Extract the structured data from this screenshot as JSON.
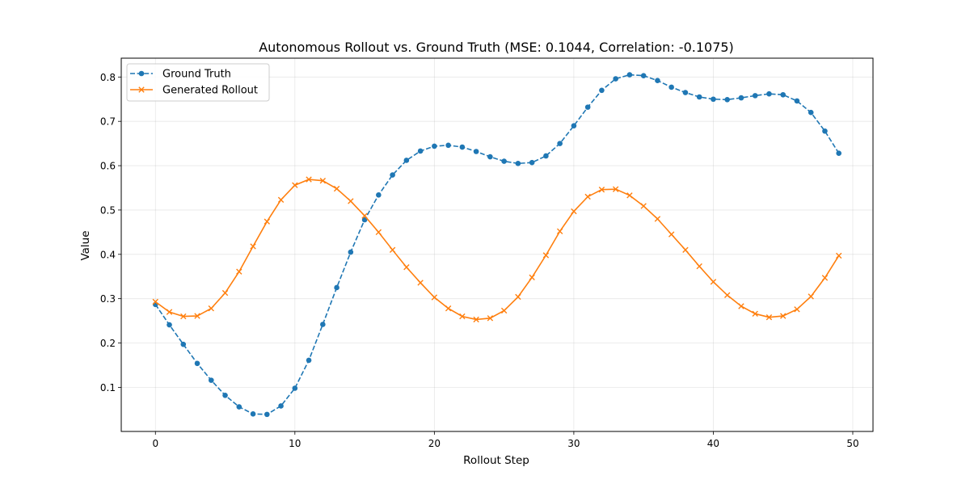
{
  "chart_data": {
    "type": "line",
    "title": "Autonomous Rollout vs. Ground Truth (MSE: 0.1044, Correlation: -0.1075)",
    "xlabel": "Rollout Step",
    "ylabel": "Value",
    "xlim": [
      -2.45,
      51.45
    ],
    "ylim": [
      0.0005,
      0.8425
    ],
    "x_ticks": [
      0,
      10,
      20,
      30,
      40,
      50
    ],
    "x_tick_labels": [
      "0",
      "10",
      "20",
      "30",
      "40",
      "50"
    ],
    "y_ticks": [
      0.1,
      0.2,
      0.3,
      0.4,
      0.5,
      0.6,
      0.7,
      0.8
    ],
    "y_tick_labels": [
      "0.1",
      "0.2",
      "0.3",
      "0.4",
      "0.5",
      "0.6",
      "0.7",
      "0.8"
    ],
    "grid": true,
    "legend_position": "upper-left",
    "x": [
      0,
      1,
      2,
      3,
      4,
      5,
      6,
      7,
      8,
      9,
      10,
      11,
      12,
      13,
      14,
      15,
      16,
      17,
      18,
      19,
      20,
      21,
      22,
      23,
      24,
      25,
      26,
      27,
      28,
      29,
      30,
      31,
      32,
      33,
      34,
      35,
      36,
      37,
      38,
      39,
      40,
      41,
      42,
      43,
      44,
      45,
      46,
      47,
      48,
      49
    ],
    "series": [
      {
        "name": "Ground Truth",
        "color": "#1f77b4",
        "line_style": "dashed",
        "marker": "circle",
        "values": [
          0.287,
          0.241,
          0.197,
          0.154,
          0.116,
          0.082,
          0.056,
          0.04,
          0.039,
          0.058,
          0.098,
          0.161,
          0.242,
          0.325,
          0.405,
          0.478,
          0.534,
          0.579,
          0.612,
          0.633,
          0.644,
          0.646,
          0.642,
          0.632,
          0.62,
          0.61,
          0.605,
          0.607,
          0.622,
          0.65,
          0.69,
          0.732,
          0.77,
          0.796,
          0.805,
          0.803,
          0.792,
          0.777,
          0.765,
          0.755,
          0.75,
          0.749,
          0.753,
          0.758,
          0.762,
          0.76,
          0.746,
          0.72,
          0.678,
          0.628
        ]
      },
      {
        "name": "Generated Rollout",
        "color": "#ff7f0e",
        "line_style": "solid",
        "marker": "x",
        "values": [
          0.293,
          0.27,
          0.26,
          0.261,
          0.278,
          0.313,
          0.361,
          0.418,
          0.474,
          0.523,
          0.556,
          0.569,
          0.566,
          0.548,
          0.52,
          0.487,
          0.45,
          0.41,
          0.371,
          0.336,
          0.303,
          0.278,
          0.26,
          0.253,
          0.256,
          0.273,
          0.304,
          0.348,
          0.398,
          0.452,
          0.497,
          0.53,
          0.546,
          0.547,
          0.533,
          0.509,
          0.48,
          0.445,
          0.41,
          0.373,
          0.338,
          0.308,
          0.283,
          0.266,
          0.258,
          0.261,
          0.276,
          0.305,
          0.347,
          0.397
        ]
      }
    ]
  }
}
